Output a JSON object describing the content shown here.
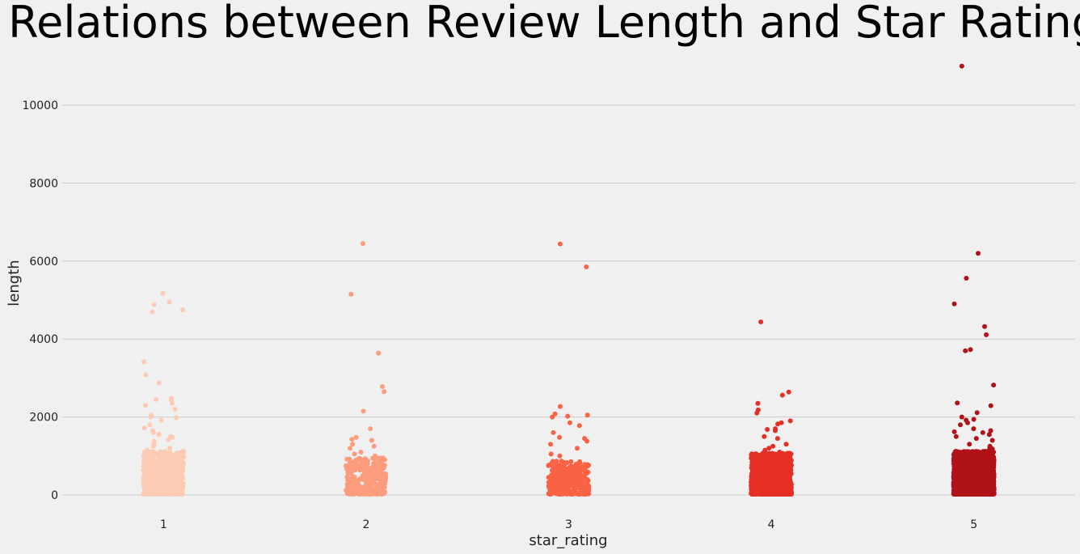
{
  "chart_data": {
    "type": "scatter",
    "title": "Relations between Review Length and Star Rating",
    "xlabel": "star_rating",
    "ylabel": "length",
    "categories": [
      "1",
      "2",
      "3",
      "4",
      "5"
    ],
    "yticks": [
      "0",
      "2000",
      "4000",
      "6000",
      "8000",
      "10000"
    ],
    "ylim": [
      -500,
      11300
    ],
    "grid": true,
    "colors": [
      "#fdcbb4",
      "#fc9c7d",
      "#f96245",
      "#e42f27",
      "#b11218"
    ],
    "series": [
      {
        "category": "1",
        "color": "#fdcbb4",
        "values": [
          5170,
          4950,
          4880,
          4750,
          4700,
          3420,
          3080,
          2880,
          2480,
          2450,
          2420,
          2350,
          2300,
          2200,
          2050,
          2000,
          1980,
          1920,
          1800,
          1720,
          1650,
          1600,
          1550,
          1500,
          1480,
          1420,
          1380,
          1300,
          1250,
          1200,
          1150,
          1100
        ],
        "count": 700,
        "bulk_max": 1100
      },
      {
        "category": "2",
        "color": "#fc9c7d",
        "values": [
          6450,
          5150,
          3640,
          2780,
          2650,
          2150,
          1700,
          1480,
          1430,
          1400,
          1300,
          1250,
          1200,
          1100,
          1050,
          1000
        ],
        "count": 330,
        "bulk_max": 950
      },
      {
        "category": "3",
        "color": "#f96245",
        "values": [
          6440,
          5850,
          2270,
          2080,
          2050,
          2020,
          2000,
          1850,
          1780,
          1600,
          1480,
          1450,
          1380,
          1300,
          1200,
          1050,
          1000
        ],
        "count": 330,
        "bulk_max": 850
      },
      {
        "category": "4",
        "color": "#e42f27",
        "values": [
          4440,
          2640,
          2560,
          2350,
          2180,
          2100,
          1900,
          1850,
          1820,
          1700,
          1680,
          1650,
          1500,
          1450,
          1300,
          1250,
          1200,
          1150,
          1100
        ],
        "count": 1300,
        "bulk_max": 1050
      },
      {
        "category": "5",
        "color": "#b11218",
        "values": [
          11000,
          6200,
          5560,
          4900,
          4320,
          4110,
          3730,
          3700,
          2820,
          2360,
          2290,
          2110,
          2000,
          1940,
          1920,
          1850,
          1800,
          1700,
          1650,
          1620,
          1600,
          1550,
          1500,
          1450,
          1400,
          1300,
          1250,
          1200,
          1180,
          1150
        ],
        "count": 3000,
        "bulk_max": 1100
      }
    ]
  }
}
